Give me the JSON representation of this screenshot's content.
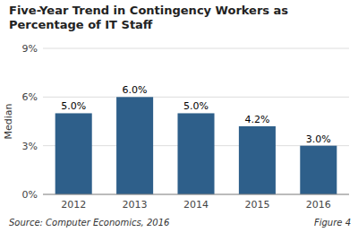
{
  "chart_data": {
    "type": "bar",
    "title": "Five-Year Trend in Contingency Workers as Percentage of IT Staff",
    "categories": [
      "2012",
      "2013",
      "2014",
      "2015",
      "2016"
    ],
    "values": [
      5.0,
      6.0,
      5.0,
      4.2,
      3.0
    ],
    "value_labels": [
      "5.0%",
      "6.0%",
      "5.0%",
      "4.2%",
      "3.0%"
    ],
    "data_labels": true,
    "color": "#2E5F8A",
    "y_label": "Median",
    "ylim": [
      0,
      9
    ],
    "yticks": [
      {
        "value": 0,
        "label": "0%"
      },
      {
        "value": 3,
        "label": "3%"
      },
      {
        "value": 6,
        "label": "6%"
      },
      {
        "value": 9,
        "label": "9%"
      }
    ],
    "grid": true,
    "annotations": [
      "Source: Computer Economics, 2016",
      "Figure 4"
    ]
  }
}
